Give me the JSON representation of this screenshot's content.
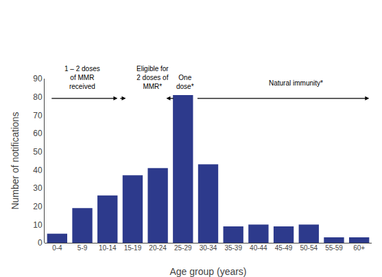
{
  "chart_data": {
    "type": "bar",
    "categories": [
      "0-4",
      "5-9",
      "10-14",
      "15-19",
      "20-24",
      "25-29",
      "30-34",
      "35-39",
      "40-44",
      "45-49",
      "50-54",
      "55-59",
      "60+"
    ],
    "values": [
      5,
      19,
      26,
      37,
      41,
      81,
      43,
      9,
      10,
      9,
      10,
      3,
      3
    ],
    "color": "#2D3A8C",
    "xlabel": "Age group (years)",
    "ylabel": "Number of notifications",
    "ylim": [
      0,
      90
    ],
    "yticks": [
      0,
      10,
      20,
      30,
      40,
      50,
      60,
      70,
      80,
      90
    ],
    "grid": false,
    "annotations": [
      "1 – 2 doses\nof MMR\nreceived",
      "Eligible for\n2 doses of\nMMR*",
      "One\ndose*",
      "Natural immunity*"
    ]
  }
}
